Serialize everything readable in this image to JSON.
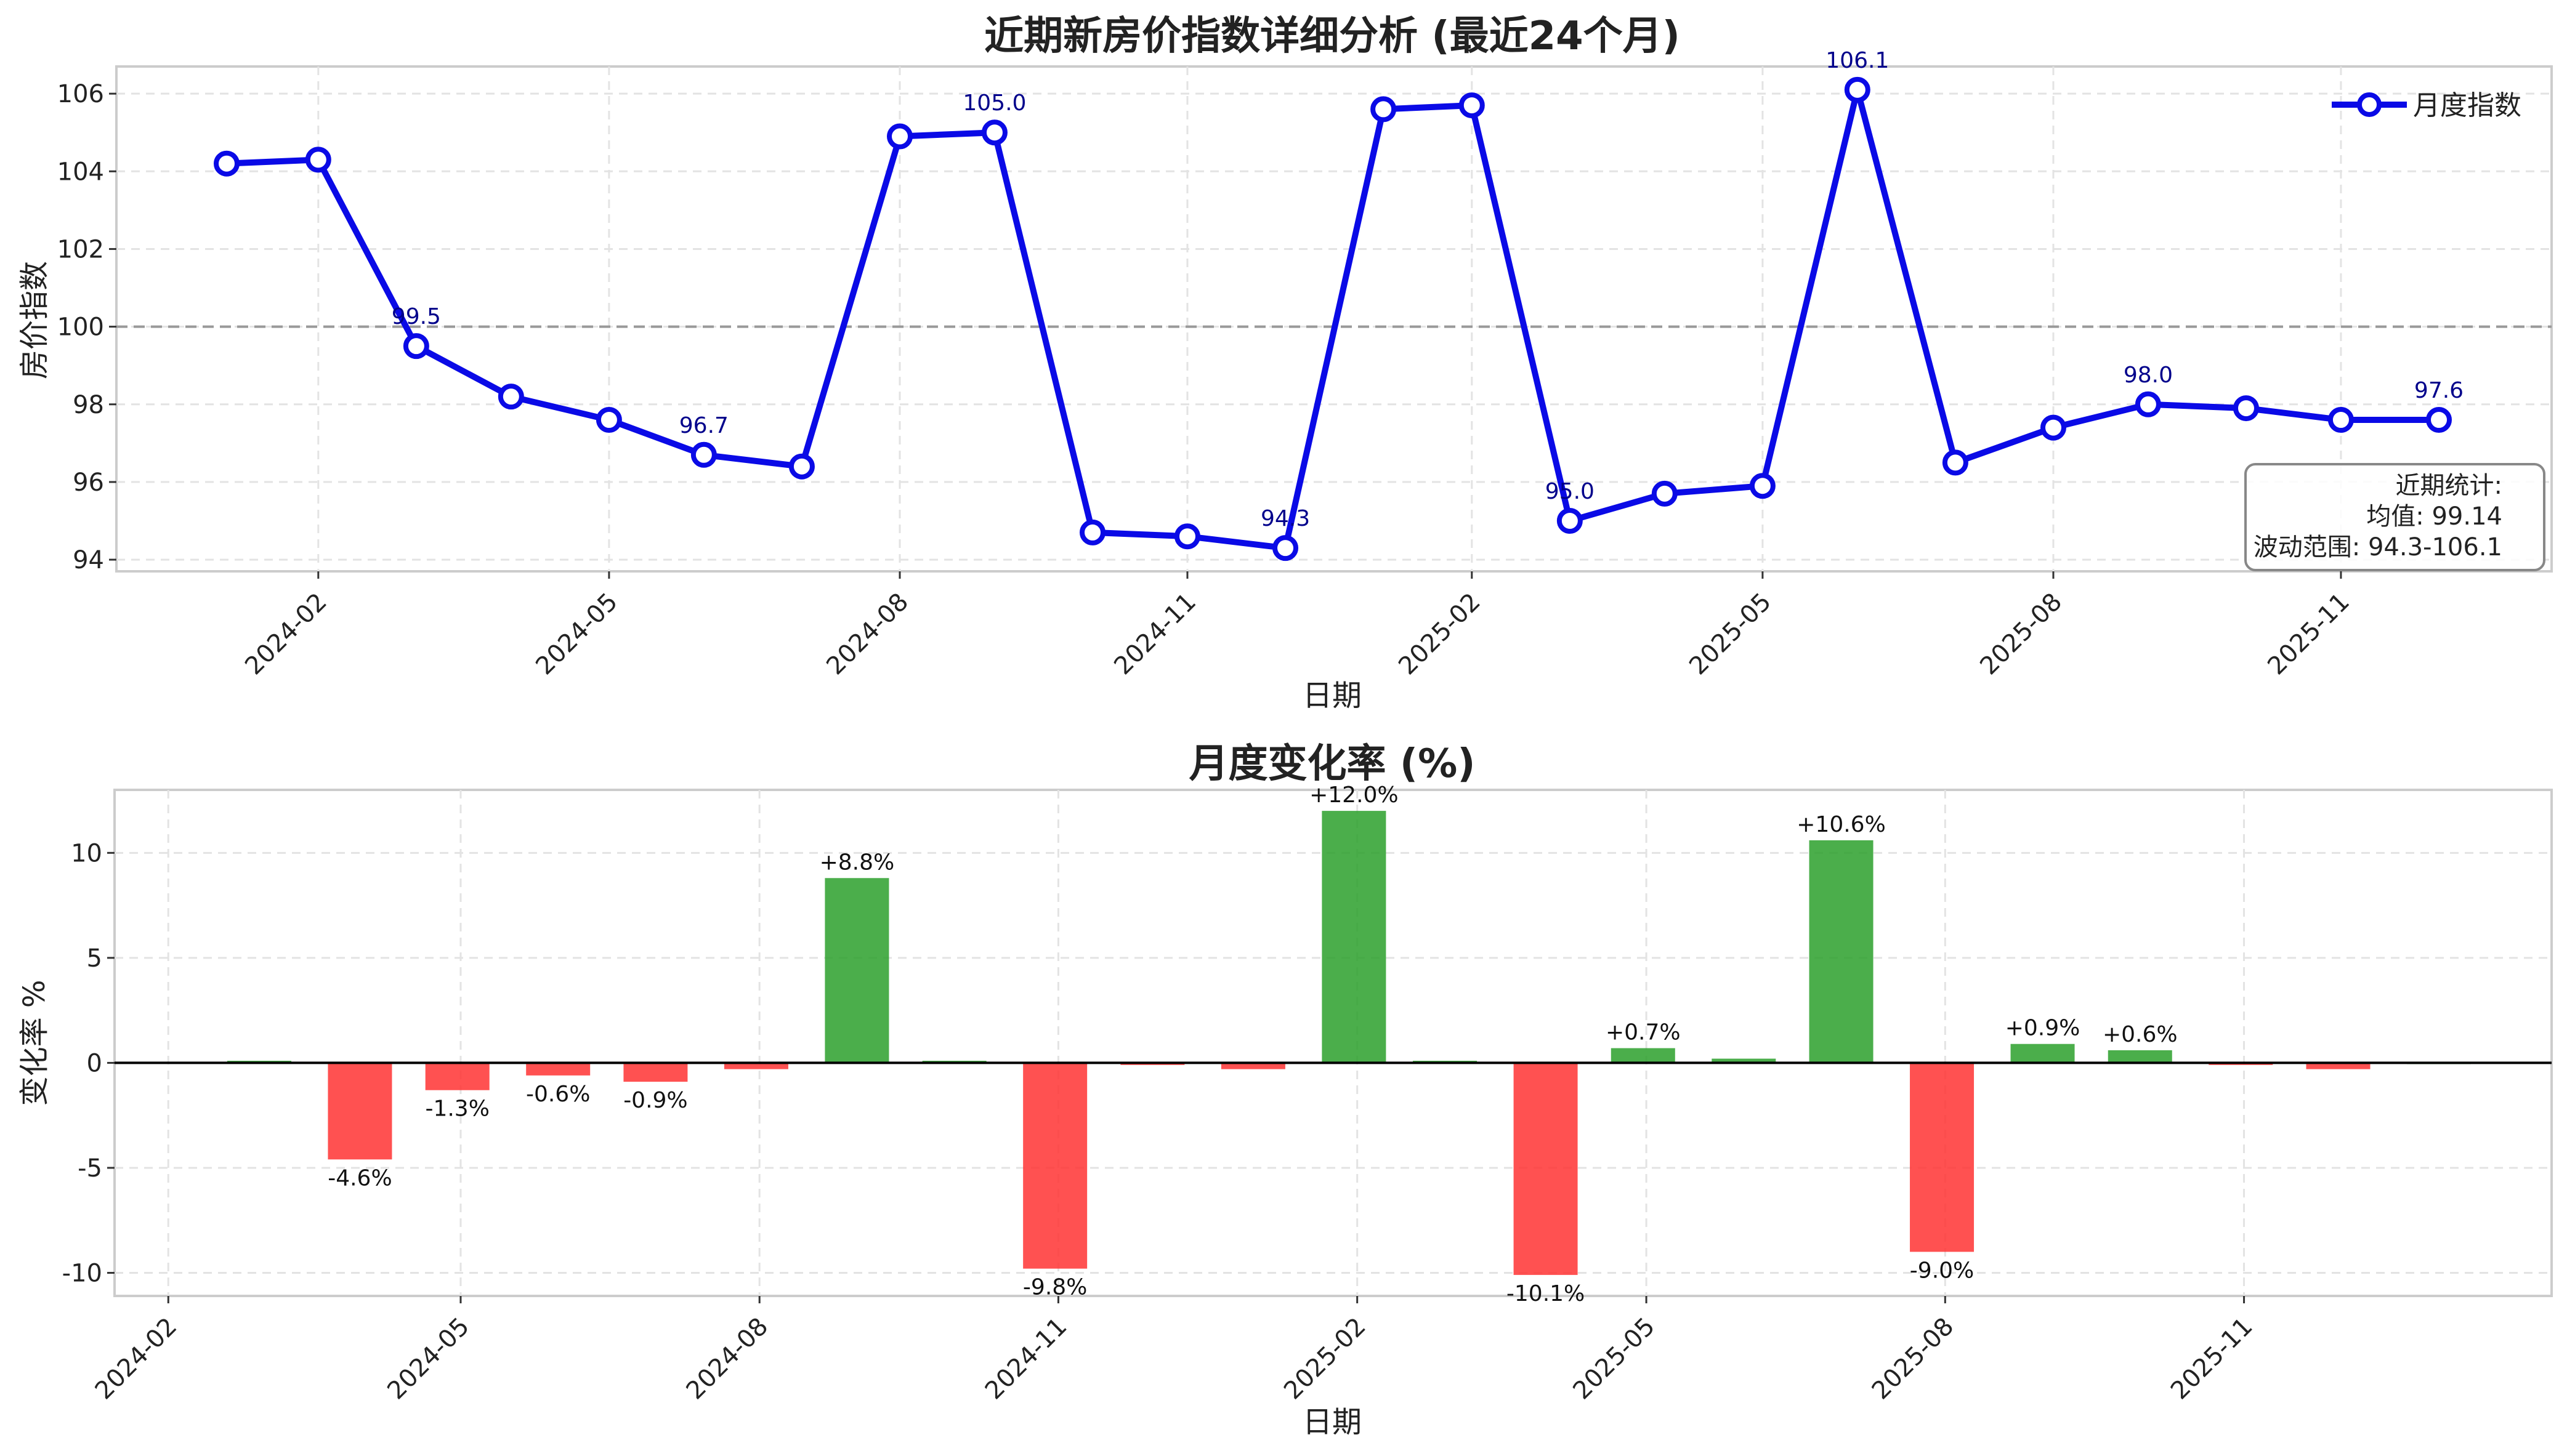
{
  "chart_data": [
    {
      "type": "line",
      "title": "近期新房价指数详细分析 (最近24个月)",
      "xlabel": "日期",
      "ylabel": "房价指数",
      "ylim": [
        93.7,
        106.7
      ],
      "yticks": [
        94,
        96,
        98,
        100,
        102,
        104,
        106
      ],
      "xticks": [
        "2024-02",
        "2024-05",
        "2024-08",
        "2024-11",
        "2025-02",
        "2025-05",
        "2025-08",
        "2025-11"
      ],
      "reference_line": 100,
      "grid": true,
      "legend": {
        "position": "top-right",
        "entries": [
          "月度指数"
        ]
      },
      "color": "#0a0ae6",
      "series": [
        {
          "name": "月度指数",
          "x": [
            "2024-01-31",
            "2024-02-29",
            "2024-03-31",
            "2024-04-30",
            "2024-05-31",
            "2024-06-30",
            "2024-07-31",
            "2024-08-31",
            "2024-09-30",
            "2024-10-31",
            "2024-11-30",
            "2024-12-31",
            "2025-01-31",
            "2025-02-28",
            "2025-03-31",
            "2025-04-30",
            "2025-05-31",
            "2025-06-30",
            "2025-07-31",
            "2025-08-31",
            "2025-09-30",
            "2025-10-31",
            "2025-11-30",
            "2025-12-31"
          ],
          "values": [
            104.2,
            104.3,
            99.5,
            98.2,
            97.6,
            96.7,
            96.4,
            104.9,
            105.0,
            94.7,
            94.6,
            94.3,
            105.6,
            105.7,
            95.0,
            95.7,
            95.9,
            106.1,
            96.5,
            97.4,
            98.0,
            97.9,
            97.6,
            97.6
          ]
        }
      ],
      "annotations": [
        {
          "x": "2024-03-31",
          "text": "99.5"
        },
        {
          "x": "2024-06-30",
          "text": "96.7"
        },
        {
          "x": "2024-09-30",
          "text": "105.0"
        },
        {
          "x": "2024-12-31",
          "text": "94.3"
        },
        {
          "x": "2025-03-31",
          "text": "95.0"
        },
        {
          "x": "2025-06-30",
          "text": "106.1"
        },
        {
          "x": "2025-09-30",
          "text": "98.0"
        },
        {
          "x": "2025-12-31",
          "text": "97.6"
        }
      ],
      "stats_box": {
        "lines": [
          "近期统计:",
          "均值: 99.14",
          "波动范围: 94.3-106.1"
        ],
        "position": "bottom-right"
      }
    },
    {
      "type": "bar",
      "title": "月度变化率 (%)",
      "xlabel": "日期",
      "ylabel": "变化率 %",
      "ylim": [
        -11.1,
        13.0
      ],
      "yticks": [
        -10,
        -5,
        0,
        5,
        10
      ],
      "xticks": [
        "2024-02",
        "2024-05",
        "2024-08",
        "2024-11",
        "2025-02",
        "2025-05",
        "2025-08",
        "2025-11"
      ],
      "grid": true,
      "positive_color": "#2ca02c",
      "negative_color": "#ff3333",
      "series": [
        {
          "name": "",
          "x": [
            "2024-02-29",
            "2024-03-31",
            "2024-04-30",
            "2024-05-31",
            "2024-06-30",
            "2024-07-31",
            "2024-08-31",
            "2024-09-30",
            "2024-10-31",
            "2024-11-30",
            "2024-12-31",
            "2025-01-31",
            "2025-02-28",
            "2025-03-31",
            "2025-04-30",
            "2025-05-31",
            "2025-06-30",
            "2025-07-31",
            "2025-08-31",
            "2025-09-30",
            "2025-10-31",
            "2025-11-30",
            "2025-12-31"
          ],
          "values": [
            0.1,
            -4.6,
            -1.3,
            -0.6,
            -0.9,
            -0.3,
            8.8,
            0.1,
            -9.8,
            -0.1,
            -0.3,
            12.0,
            0.1,
            -10.1,
            0.7,
            0.2,
            10.6,
            -9.0,
            0.9,
            0.6,
            -0.1,
            -0.3,
            0.0
          ],
          "labels": [
            "",
            "-4.6%",
            "-1.3%",
            "-0.6%",
            "-0.9%",
            "",
            "+8.8%",
            "",
            "-9.8%",
            "",
            "",
            "+12.0%",
            "",
            "-10.1%",
            "+0.7%",
            "",
            "+10.6%",
            "-9.0%",
            "+0.9%",
            "+0.6%",
            "",
            "",
            ""
          ]
        }
      ]
    }
  ]
}
